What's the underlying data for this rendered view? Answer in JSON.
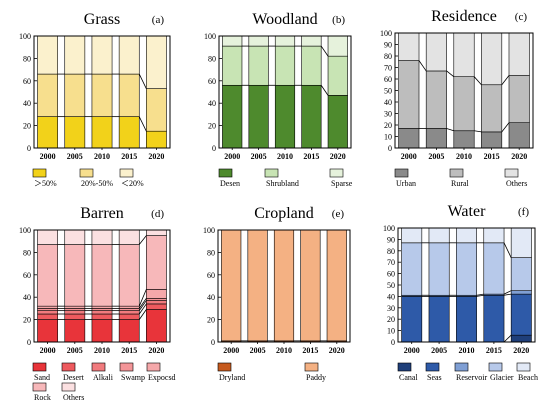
{
  "chart_data": [
    {
      "type": "bar",
      "stacked": true,
      "title": "Grass",
      "label": "(a)",
      "categories": [
        "2000",
        "2005",
        "2010",
        "2015",
        "2020"
      ],
      "ylim": [
        0,
        100
      ],
      "yticks": [
        "0",
        "20",
        "40",
        "60",
        "80",
        "100"
      ],
      "series": [
        {
          "name": "＞50%",
          "color": "#f2d21a",
          "values": [
            28,
            28,
            28,
            28,
            15
          ]
        },
        {
          "name": "20%-50%",
          "color": "#f7df8e",
          "values": [
            38,
            38,
            38,
            38,
            38
          ]
        },
        {
          "name": "＜20%",
          "color": "#fbf1cd",
          "values": [
            34,
            34,
            34,
            34,
            47
          ]
        }
      ]
    },
    {
      "type": "bar",
      "stacked": true,
      "title": "Woodland",
      "label": "(b)",
      "categories": [
        "2000",
        "2005",
        "2010",
        "2015",
        "2020"
      ],
      "ylim": [
        0,
        100
      ],
      "yticks": [
        "0",
        "20",
        "40",
        "60",
        "80",
        "100"
      ],
      "series": [
        {
          "name": "Desen",
          "color": "#4e8a2d",
          "values": [
            56,
            56,
            56,
            56,
            47
          ]
        },
        {
          "name": "Shrubland",
          "color": "#c8e4b4",
          "values": [
            35,
            35,
            35,
            35,
            35
          ]
        },
        {
          "name": "Sparse",
          "color": "#e6f2dc",
          "values": [
            9,
            9,
            9,
            9,
            18
          ]
        }
      ]
    },
    {
      "type": "bar",
      "stacked": true,
      "title": "Residence",
      "label": "(c)",
      "categories": [
        "2000",
        "2005",
        "2010",
        "2015",
        "2020"
      ],
      "ylim": [
        0,
        100
      ],
      "yticks": [
        "0",
        "10",
        "20",
        "30",
        "40",
        "50",
        "60",
        "70",
        "80",
        "90",
        "100"
      ],
      "series": [
        {
          "name": "Urban",
          "color": "#8a8a8a",
          "values": [
            17,
            17,
            15,
            14,
            22
          ]
        },
        {
          "name": "Rural",
          "color": "#bdbdbd",
          "values": [
            59,
            50,
            47,
            41,
            41
          ]
        },
        {
          "name": "Others",
          "color": "#e3e3e3",
          "values": [
            24,
            33,
            38,
            45,
            37
          ]
        }
      ]
    },
    {
      "type": "bar",
      "stacked": true,
      "title": "Barren",
      "label": "(d)",
      "categories": [
        "2000",
        "2005",
        "2010",
        "2015",
        "2020"
      ],
      "ylim": [
        0,
        100
      ],
      "yticks": [
        "0",
        "20",
        "40",
        "60",
        "80",
        "100"
      ],
      "series": [
        {
          "name": "Sand",
          "color": "#e8343a",
          "values": [
            20,
            20,
            20,
            20,
            29
          ]
        },
        {
          "name": "Desert",
          "color": "#ee5a5e",
          "values": [
            5,
            5,
            5,
            5,
            5
          ]
        },
        {
          "name": "Alkali",
          "color": "#f17b7e",
          "values": [
            3,
            3,
            3,
            3,
            3
          ]
        },
        {
          "name": "Swamp",
          "color": "#f39598",
          "values": [
            2,
            2,
            2,
            2,
            2
          ]
        },
        {
          "name": "Expocsd",
          "color": "#f5a8aa",
          "values": [
            2,
            2,
            2,
            2,
            8
          ]
        },
        {
          "name": "Rock",
          "color": "#f7b8ba",
          "values": [
            55,
            55,
            55,
            55,
            48
          ]
        },
        {
          "name": "Others",
          "color": "#fbe0e1",
          "values": [
            13,
            13,
            13,
            13,
            5
          ]
        }
      ]
    },
    {
      "type": "bar",
      "stacked": true,
      "title": "Cropland",
      "label": "(e)",
      "categories": [
        "2000",
        "2005",
        "2010",
        "2015",
        "2020"
      ],
      "ylim": [
        0,
        100
      ],
      "yticks": [
        "0",
        "20",
        "40",
        "60",
        "80",
        "100"
      ],
      "series": [
        {
          "name": "Dryland",
          "color": "#c65a1e",
          "values": [
            1,
            1,
            1,
            1,
            1
          ]
        },
        {
          "name": "Paddy",
          "color": "#f4b183",
          "values": [
            99,
            99,
            99,
            99,
            99
          ]
        }
      ]
    },
    {
      "type": "bar",
      "stacked": true,
      "title": "Water",
      "label": "(f)",
      "categories": [
        "2000",
        "2005",
        "2010",
        "2015",
        "2020"
      ],
      "ylim": [
        0,
        100
      ],
      "yticks": [
        "0",
        "10",
        "20",
        "30",
        "40",
        "50",
        "60",
        "70",
        "80",
        "90",
        "100"
      ],
      "series": [
        {
          "name": "Canal",
          "color": "#1f3f7a",
          "values": [
            0,
            0,
            0,
            0,
            6
          ]
        },
        {
          "name": "Seas",
          "color": "#2e5aa8",
          "values": [
            40,
            40,
            40,
            41,
            36
          ]
        },
        {
          "name": "Reservoir",
          "color": "#7f9fd4",
          "values": [
            1,
            1,
            1,
            1,
            3
          ]
        },
        {
          "name": "Glacier",
          "color": "#b7c9ea",
          "values": [
            46,
            46,
            46,
            45,
            29
          ]
        },
        {
          "name": "Beach",
          "color": "#e2e9f6",
          "values": [
            13,
            13,
            13,
            13,
            26
          ]
        }
      ]
    }
  ]
}
